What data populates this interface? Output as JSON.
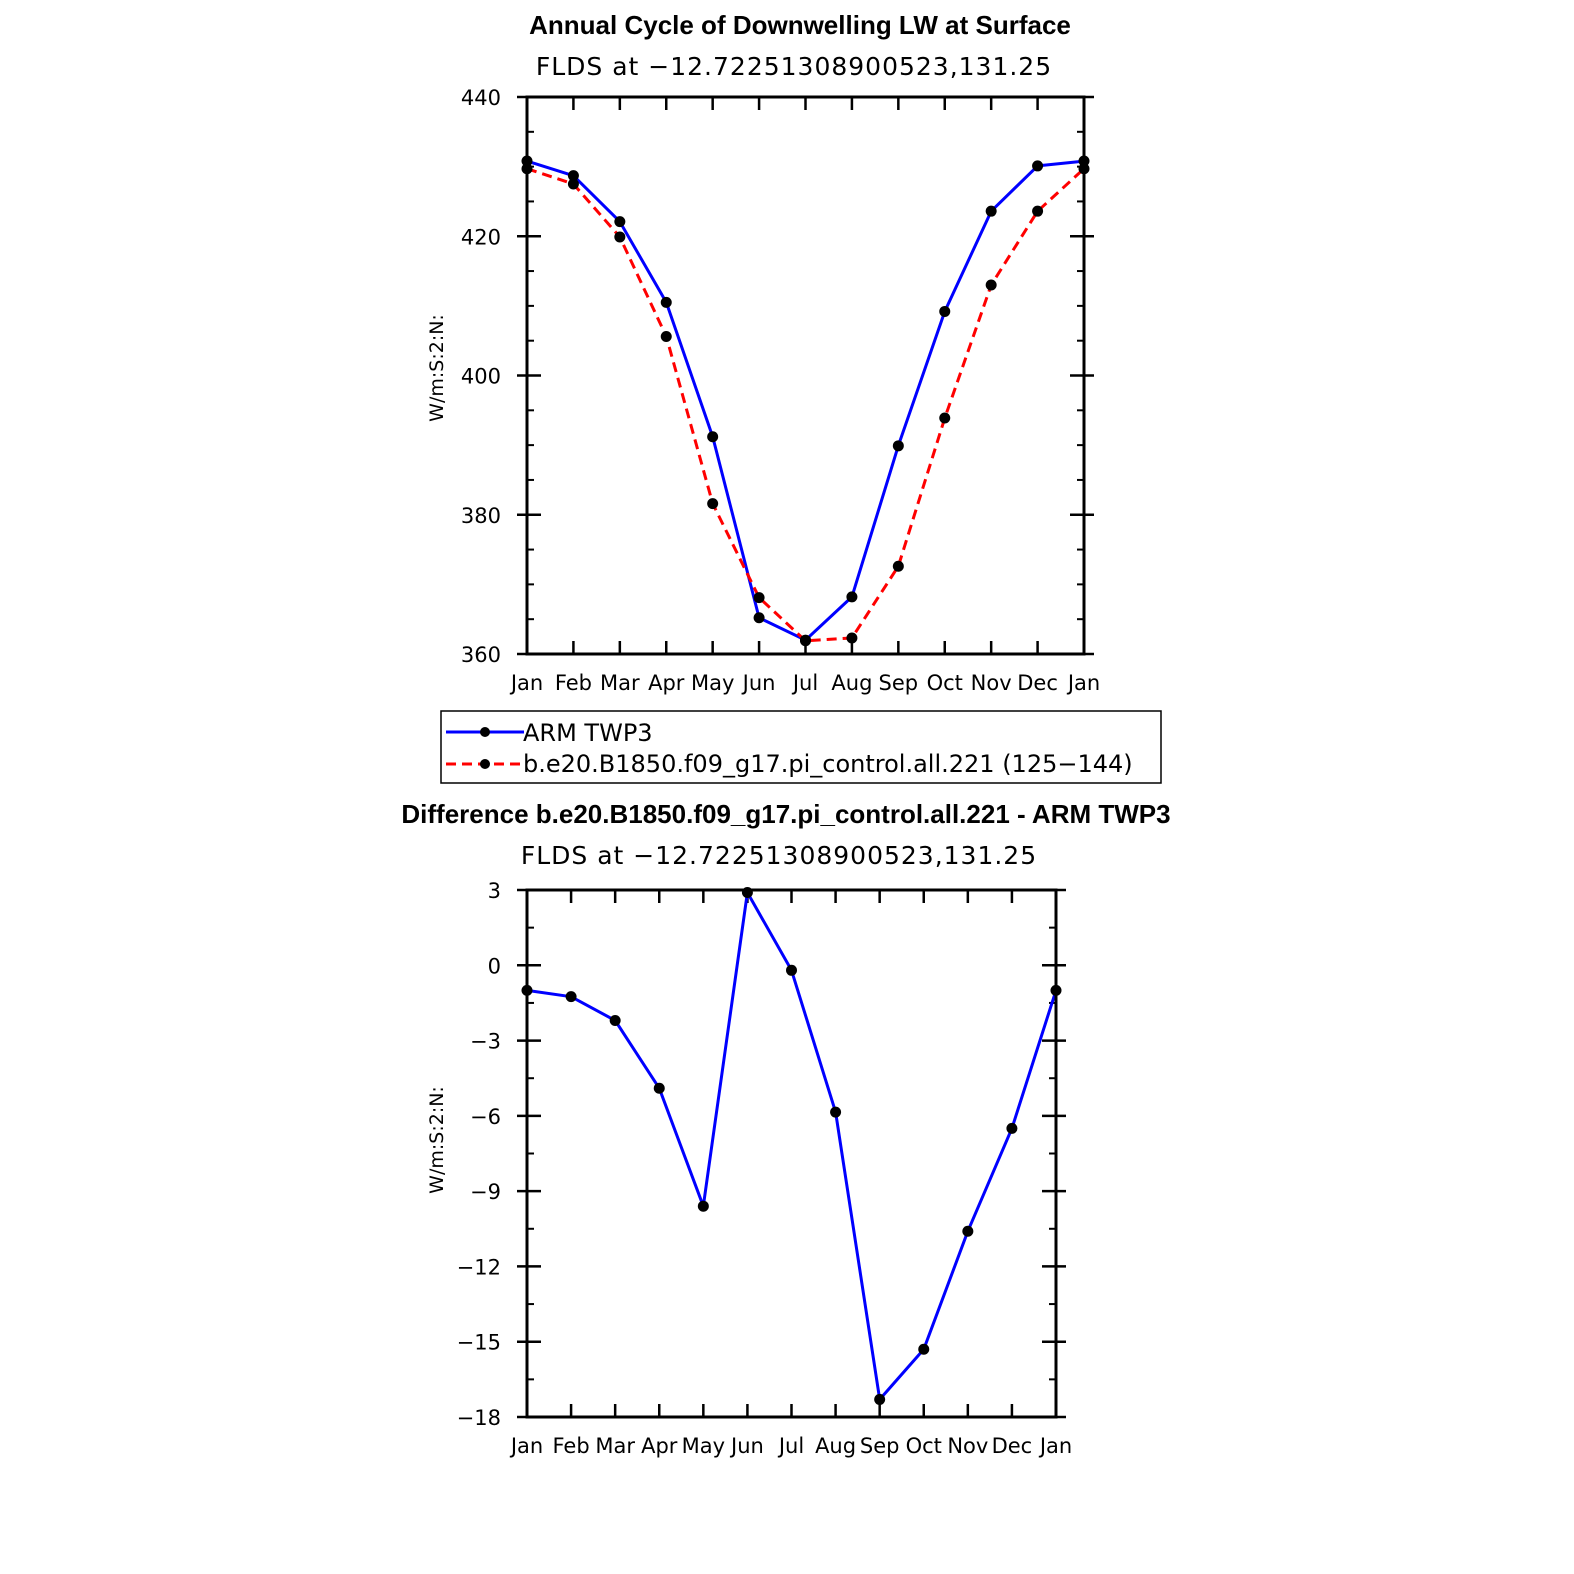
{
  "chart_data": [
    {
      "type": "line",
      "title": "Annual Cycle of Downwelling LW at Surface",
      "subtitle": "FLDS at −12.72251308900523,131.25",
      "ylabel": "W/m:S:2:N:",
      "xlabel": "",
      "categories": [
        "Jan",
        "Feb",
        "Mar",
        "Apr",
        "May",
        "Jun",
        "Jul",
        "Aug",
        "Sep",
        "Oct",
        "Nov",
        "Dec",
        "Jan"
      ],
      "ylim": [
        360,
        440
      ],
      "yticks": [
        360,
        380,
        400,
        420,
        440
      ],
      "ytick_labels": [
        "360",
        "380",
        "400",
        "420",
        "440"
      ],
      "grid": false,
      "legend": "below",
      "series": [
        {
          "name": "ARM TWP3",
          "color": "#0000ff",
          "style": "solid",
          "marker": "circle",
          "values": [
            430.8,
            428.7,
            422.1,
            410.5,
            391.2,
            365.2,
            362.0,
            368.2,
            389.9,
            409.2,
            423.6,
            430.1,
            430.8
          ]
        },
        {
          "name": "b.e20.B1850.f09_g17.pi_control.all.221 (125−144)",
          "color": "#ff0000",
          "style": "dashed",
          "marker": "circle",
          "values": [
            429.7,
            427.5,
            419.9,
            405.6,
            381.6,
            368.1,
            361.9,
            362.3,
            372.6,
            393.9,
            413.0,
            423.6,
            429.7
          ]
        }
      ]
    },
    {
      "type": "line",
      "title": "Difference b.e20.B1850.f09_g17.pi_control.all.221 - ARM TWP3",
      "subtitle": "FLDS at −12.72251308900523,131.25",
      "ylabel": "W/m:S:2:N:",
      "xlabel": "",
      "categories": [
        "Jan",
        "Feb",
        "Mar",
        "Apr",
        "May",
        "Jun",
        "Jul",
        "Aug",
        "Sep",
        "Oct",
        "Nov",
        "Dec",
        "Jan"
      ],
      "ylim": [
        -18,
        3
      ],
      "yticks": [
        -18,
        -15,
        -12,
        -9,
        -6,
        -3,
        0,
        3
      ],
      "ytick_labels": [
        "−18",
        "−15",
        "−12",
        "−9",
        "−6",
        "−3",
        "0",
        "3"
      ],
      "grid": false,
      "series": [
        {
          "color": "#0000ff",
          "style": "solid",
          "marker": "circle",
          "values": [
            -1.0,
            -1.25,
            -2.2,
            -4.9,
            -9.6,
            2.9,
            -0.2,
            -5.85,
            -17.3,
            -15.3,
            -10.6,
            -6.5,
            -1.0
          ]
        }
      ]
    }
  ]
}
